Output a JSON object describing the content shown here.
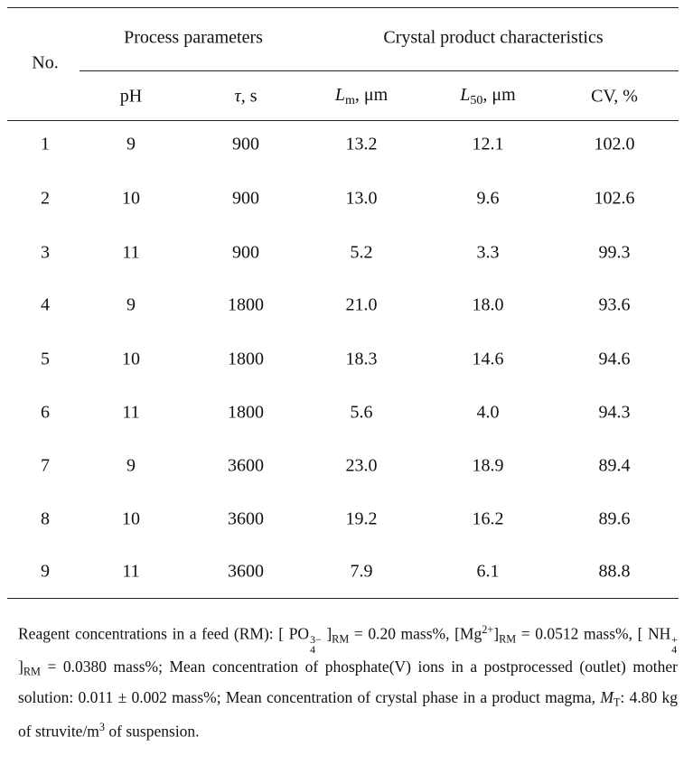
{
  "table": {
    "header": {
      "no": "No.",
      "group1": "Process parameters",
      "group2": "Crystal product characteristics",
      "columns": [
        [
          {
            "t": "pH"
          }
        ],
        [
          {
            "t": "τ",
            "k": "i"
          },
          {
            "t": ", s"
          }
        ],
        [
          {
            "t": "L",
            "k": "i"
          },
          {
            "t": "m",
            "k": "sub"
          },
          {
            "t": ", μm"
          }
        ],
        [
          {
            "t": "L",
            "k": "i"
          },
          {
            "t": "50",
            "k": "sub"
          },
          {
            "t": ", μm"
          }
        ],
        [
          {
            "t": "CV, %"
          }
        ]
      ]
    },
    "rows": [
      [
        "1",
        "9",
        "900",
        "13.2",
        "12.1",
        "102.0"
      ],
      [
        "2",
        "10",
        "900",
        "13.0",
        "9.6",
        "102.6"
      ],
      [
        "3",
        "11",
        "900",
        "5.2",
        "3.3",
        "99.3"
      ],
      [
        "4",
        "9",
        "1800",
        "21.0",
        "18.0",
        "93.6"
      ],
      [
        "5",
        "10",
        "1800",
        "18.3",
        "14.6",
        "94.6"
      ],
      [
        "6",
        "11",
        "1800",
        "5.6",
        "4.0",
        "94.3"
      ],
      [
        "7",
        "9",
        "3600",
        "23.0",
        "18.9",
        "89.4"
      ],
      [
        "8",
        "10",
        "3600",
        "19.2",
        "16.2",
        "89.6"
      ],
      [
        "9",
        "11",
        "3600",
        "7.9",
        "6.1",
        "88.8"
      ]
    ]
  },
  "footnote": [
    {
      "t": "Reagent concentrations in a feed (RM): [ "
    },
    {
      "t": "PO",
      "k": "stack",
      "sup": "3−",
      "sub": "4"
    },
    {
      "t": " ]"
    },
    {
      "t": "RM",
      "k": "sub"
    },
    {
      "t": " = 0.20 mass%, [Mg"
    },
    {
      "t": "2+",
      "k": "sup"
    },
    {
      "t": "]"
    },
    {
      "t": "RM",
      "k": "sub"
    },
    {
      "t": " = 0.0512 mass%, [ "
    },
    {
      "t": "NH",
      "k": "stack",
      "sup": "+",
      "sub": "4"
    },
    {
      "t": " ]"
    },
    {
      "t": "RM",
      "k": "sub"
    },
    {
      "t": " = 0.0380 mass%; Mean concentration of phos­phate(V) ions in a postprocessed (outlet) mother solution: 0.011 ± 0.002 mass%; Mean concentration of crystal phase in a product magma, "
    },
    {
      "t": "M",
      "k": "i"
    },
    {
      "t": "T",
      "k": "sub"
    },
    {
      "t": ": 4.80 kg of struvite/m"
    },
    {
      "t": "3",
      "k": "sup"
    },
    {
      "t": " of suspension."
    }
  ]
}
